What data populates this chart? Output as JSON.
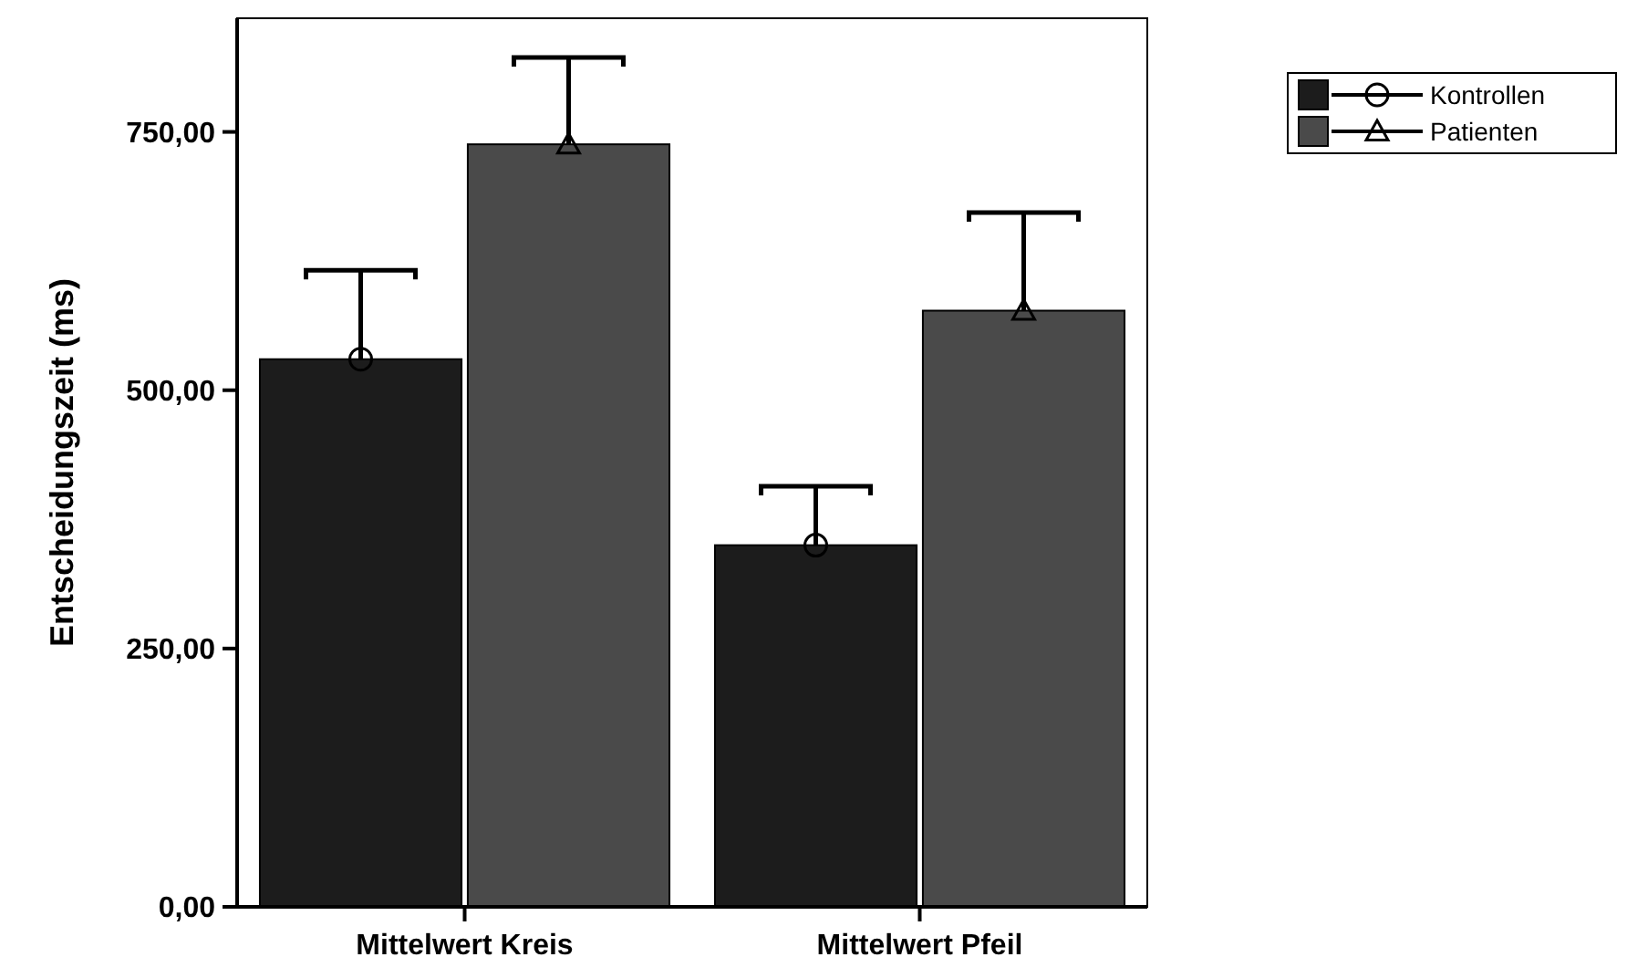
{
  "chart_data": {
    "type": "bar",
    "ylabel": "Entscheidungszeit (ms)",
    "categories": [
      "Mittelwert Kreis",
      "Mittelwert Pfeil"
    ],
    "series": [
      {
        "name": "Kontrollen",
        "color": "#1c1c1c",
        "marker": "circle",
        "values": [
          530,
          350
        ],
        "errors": [
          [
            530,
            616
          ],
          [
            350,
            407
          ]
        ]
      },
      {
        "name": "Patienten",
        "color": "#4a4a4a",
        "marker": "triangle",
        "values": [
          738,
          577
        ],
        "errors": [
          [
            738,
            822
          ],
          [
            577,
            672
          ]
        ]
      }
    ],
    "ylim": [
      0,
      860
    ],
    "yticks": [
      {
        "value": 0,
        "label": "0,00"
      },
      {
        "value": 250,
        "label": "250,00"
      },
      {
        "value": 500,
        "label": "500,00"
      },
      {
        "value": 750,
        "label": "750,00"
      }
    ],
    "grid": false,
    "legend": "top right"
  }
}
